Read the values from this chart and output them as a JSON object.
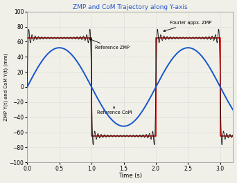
{
  "title": "ZMP and CoM Trajectory along Y-axis",
  "xlabel": "Time (s)",
  "ylabel": "ZMP Y(t) and CoM Y(t) (mm)",
  "xlim": [
    0,
    3.2
  ],
  "ylim": [
    -100,
    100
  ],
  "xticks": [
    0,
    0.5,
    1,
    1.5,
    2,
    2.5,
    3
  ],
  "yticks": [
    -100,
    -80,
    -60,
    -40,
    -20,
    0,
    20,
    40,
    60,
    80,
    100
  ],
  "ref_zmp_color": "#cc1111",
  "fourier_zmp_color": "#111111",
  "com_color": "#1555cc",
  "ref_zmp_amplitude": 65,
  "com_amplitude": 52,
  "period": 2.0,
  "n_fourier_terms": 20,
  "label_ref_zmp": "Reference ZMP",
  "label_fourier_zmp": "Fourier appx. ZMP",
  "label_com": "Reference CoM",
  "title_color": "#2255cc",
  "background_color": "#f0f0e8",
  "grid_color": "#bbbbbb"
}
